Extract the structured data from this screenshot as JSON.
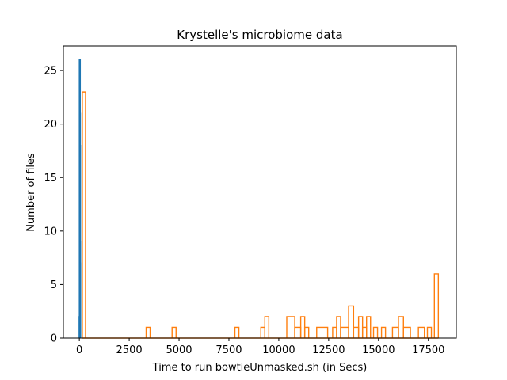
{
  "chart_data": {
    "type": "histogram",
    "title": "Krystelle's microbiome data",
    "xlabel": "Time to run bowtieUnmasked.sh (in Secs)",
    "ylabel": "Number of files",
    "xlim": [
      -800,
      18900
    ],
    "ylim": [
      0,
      27.3
    ],
    "x_ticks": [
      0,
      2500,
      5000,
      7500,
      10000,
      12500,
      15000,
      17500
    ],
    "x_tick_labels": [
      "0",
      "2500",
      "5000",
      "7500",
      "10000",
      "12500",
      "15000",
      "17500"
    ],
    "y_ticks": [
      0,
      5,
      10,
      15,
      20,
      25
    ],
    "y_tick_labels": [
      "0",
      "5",
      "10",
      "15",
      "20",
      "25"
    ],
    "grid": false,
    "legend": "none",
    "series": [
      {
        "color": "#1f77b4",
        "histtype": "step",
        "bins": [
          {
            "x0": -10,
            "x1": 0,
            "count": 2
          },
          {
            "x0": 0,
            "x1": 5,
            "count": 26
          },
          {
            "x0": 5,
            "x1": 10,
            "count": 21
          },
          {
            "x0": 10,
            "x1": 15,
            "count": 18
          },
          {
            "x0": 15,
            "x1": 20,
            "count": 9
          },
          {
            "x0": 20,
            "x1": 25,
            "count": 7
          }
        ]
      },
      {
        "color": "#ff7f0e",
        "histtype": "step",
        "bins": [
          {
            "x0": 150,
            "x1": 310,
            "count": 23
          },
          {
            "x0": 3350,
            "x1": 3550,
            "count": 1
          },
          {
            "x0": 4650,
            "x1": 4850,
            "count": 1
          },
          {
            "x0": 7800,
            "x1": 8000,
            "count": 1
          },
          {
            "x0": 9100,
            "x1": 9300,
            "count": 1
          },
          {
            "x0": 9300,
            "x1": 9500,
            "count": 2
          },
          {
            "x0": 10400,
            "x1": 10800,
            "count": 2
          },
          {
            "x0": 10800,
            "x1": 11100,
            "count": 1
          },
          {
            "x0": 11100,
            "x1": 11300,
            "count": 2
          },
          {
            "x0": 11300,
            "x1": 11500,
            "count": 1
          },
          {
            "x0": 11900,
            "x1": 12450,
            "count": 1
          },
          {
            "x0": 12700,
            "x1": 12900,
            "count": 1
          },
          {
            "x0": 12900,
            "x1": 13100,
            "count": 2
          },
          {
            "x0": 13100,
            "x1": 13500,
            "count": 1
          },
          {
            "x0": 13500,
            "x1": 13750,
            "count": 3
          },
          {
            "x0": 13750,
            "x1": 14000,
            "count": 1
          },
          {
            "x0": 14000,
            "x1": 14200,
            "count": 2
          },
          {
            "x0": 14200,
            "x1": 14400,
            "count": 1
          },
          {
            "x0": 14400,
            "x1": 14600,
            "count": 2
          },
          {
            "x0": 14750,
            "x1": 14950,
            "count": 1
          },
          {
            "x0": 15150,
            "x1": 15350,
            "count": 1
          },
          {
            "x0": 15700,
            "x1": 16000,
            "count": 1
          },
          {
            "x0": 16000,
            "x1": 16250,
            "count": 2
          },
          {
            "x0": 16250,
            "x1": 16600,
            "count": 1
          },
          {
            "x0": 17000,
            "x1": 17300,
            "count": 1
          },
          {
            "x0": 17450,
            "x1": 17650,
            "count": 1
          },
          {
            "x0": 17800,
            "x1": 18000,
            "count": 6
          }
        ]
      }
    ]
  }
}
